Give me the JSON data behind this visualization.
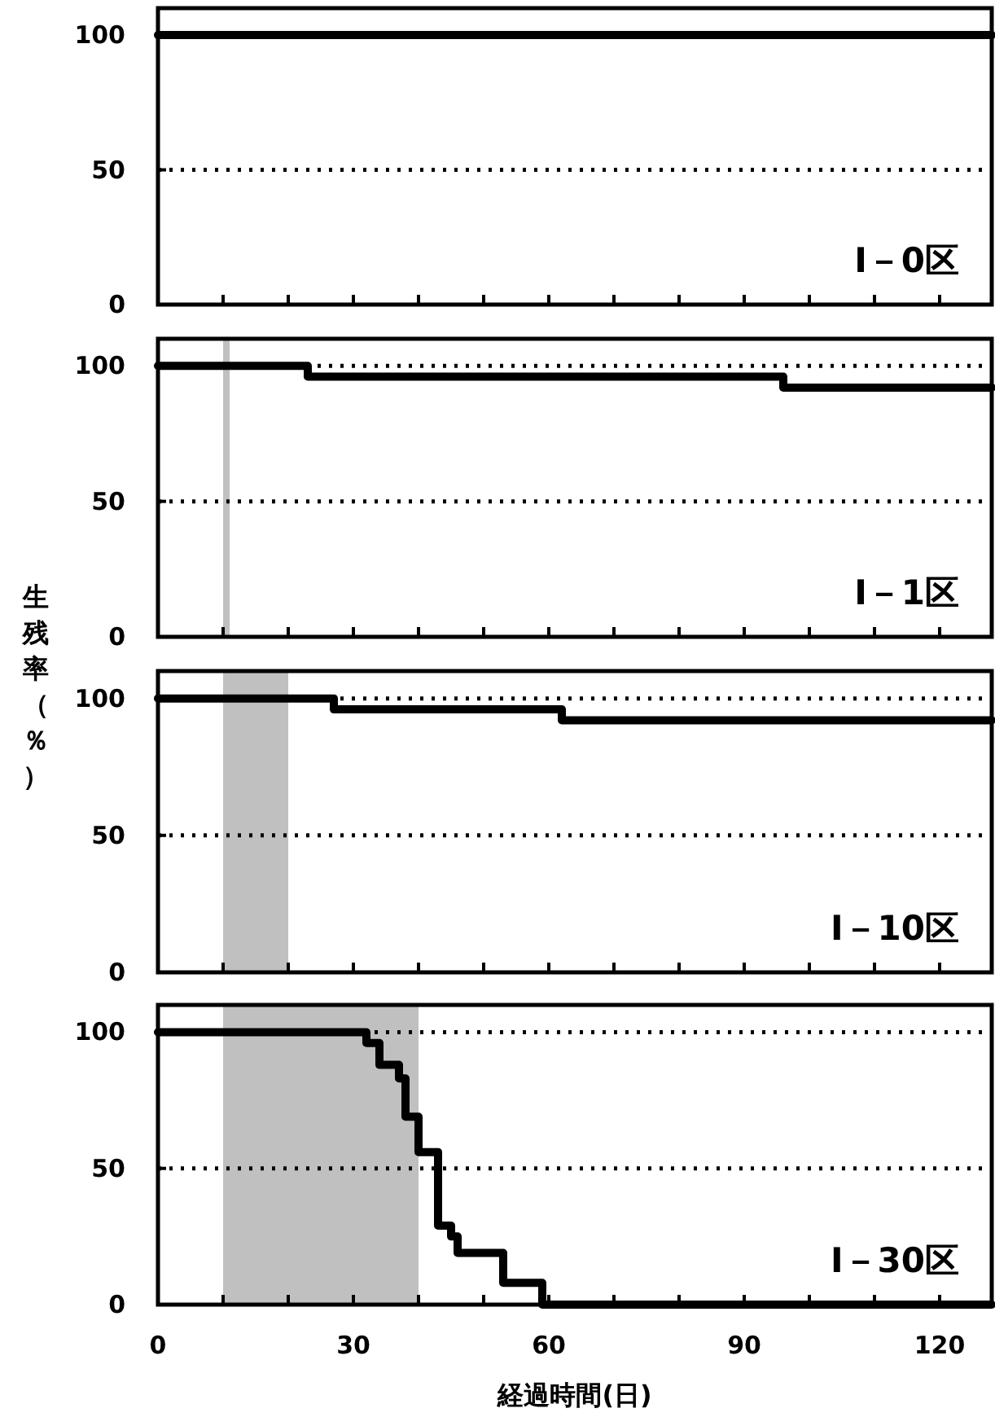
{
  "chart_data": [
    {
      "type": "step",
      "xlim": [
        0,
        128
      ],
      "ylim": [
        0,
        110
      ],
      "yticks": [
        0,
        50,
        100
      ],
      "xticks": [
        0,
        {
          "value": 10,
          "label": null
        },
        {
          "value": 20,
          "label": null
        },
        30,
        {
          "value": 40,
          "label": null
        },
        {
          "value": 50,
          "label": null
        },
        60,
        {
          "value": 70,
          "label": null
        },
        {
          "value": 80,
          "label": null
        },
        90,
        {
          "value": 100,
          "label": null
        },
        {
          "value": 110,
          "label": null
        },
        120
      ],
      "tick_labels": "y",
      "series": [
        {
          "color": "#000000",
          "x": [
            0,
            128
          ],
          "values": [
            100,
            100
          ]
        }
      ],
      "ref_lines": [
        {
          "axis": "y",
          "value": 50,
          "line_style": "dotted",
          "color": "#000000"
        }
      ],
      "annotations": [
        "Ⅰ－0区"
      ]
    },
    {
      "type": "step",
      "xlim": [
        0,
        128
      ],
      "ylim": [
        0,
        110
      ],
      "yticks": [
        0,
        50,
        100
      ],
      "xticks": [
        0,
        {
          "value": 10,
          "label": null
        },
        {
          "value": 20,
          "label": null
        },
        30,
        {
          "value": 40,
          "label": null
        },
        {
          "value": 50,
          "label": null
        },
        60,
        {
          "value": 70,
          "label": null
        },
        {
          "value": 80,
          "label": null
        },
        90,
        {
          "value": 100,
          "label": null
        },
        {
          "value": 110,
          "label": null
        },
        120
      ],
      "tick_labels": "y",
      "ylabel": "生残率（％）",
      "series": [
        {
          "color": "#000000",
          "x": [
            0,
            23,
            96,
            128
          ],
          "values": [
            100,
            96,
            92,
            92
          ]
        }
      ],
      "ref_lines": [
        {
          "axis": "y",
          "value": 50,
          "line_style": "dotted",
          "color": "#000000"
        },
        {
          "axis": "y",
          "value": 100,
          "line_style": "dotted",
          "color": "#000000"
        }
      ],
      "bands": [
        {
          "axis": "x",
          "from": 10,
          "to": 11,
          "color": "#c0c0c0"
        }
      ],
      "annotations": [
        "Ⅰ－1区"
      ]
    },
    {
      "type": "step",
      "xlim": [
        0,
        128
      ],
      "ylim": [
        0,
        110
      ],
      "yticks": [
        0,
        50,
        100
      ],
      "xticks": [
        0,
        {
          "value": 10,
          "label": null
        },
        {
          "value": 20,
          "label": null
        },
        30,
        {
          "value": 40,
          "label": null
        },
        {
          "value": 50,
          "label": null
        },
        60,
        {
          "value": 70,
          "label": null
        },
        {
          "value": 80,
          "label": null
        },
        90,
        {
          "value": 100,
          "label": null
        },
        {
          "value": 110,
          "label": null
        },
        120
      ],
      "tick_labels": "y",
      "series": [
        {
          "color": "#000000",
          "x": [
            0,
            27,
            62,
            128
          ],
          "values": [
            100,
            96,
            92,
            92
          ]
        }
      ],
      "ref_lines": [
        {
          "axis": "y",
          "value": 50,
          "line_style": "dotted",
          "color": "#000000"
        },
        {
          "axis": "y",
          "value": 100,
          "line_style": "dotted",
          "color": "#000000"
        }
      ],
      "bands": [
        {
          "axis": "x",
          "from": 10,
          "to": 20,
          "color": "#c0c0c0"
        }
      ],
      "annotations": [
        "Ⅰ－10区"
      ]
    },
    {
      "type": "step",
      "xlim": [
        0,
        128
      ],
      "ylim": [
        0,
        110
      ],
      "yticks": [
        0,
        50,
        100
      ],
      "xticks": [
        0,
        {
          "value": 10,
          "label": null
        },
        {
          "value": 20,
          "label": null
        },
        30,
        {
          "value": 40,
          "label": null
        },
        {
          "value": 50,
          "label": null
        },
        60,
        {
          "value": 70,
          "label": null
        },
        {
          "value": 80,
          "label": null
        },
        90,
        {
          "value": 100,
          "label": null
        },
        {
          "value": 110,
          "label": null
        },
        120
      ],
      "xlabel": "経過時間(日)",
      "series": [
        {
          "color": "#000000",
          "x": [
            0,
            32,
            34,
            37,
            38,
            40,
            43,
            45,
            46,
            53,
            59,
            128
          ],
          "values": [
            100,
            96,
            88,
            83,
            69,
            56,
            29,
            25,
            19,
            8,
            0,
            0
          ]
        }
      ],
      "ref_lines": [
        {
          "axis": "y",
          "value": 50,
          "line_style": "dotted",
          "color": "#000000"
        },
        {
          "axis": "y",
          "value": 100,
          "line_style": "dotted",
          "color": "#000000"
        }
      ],
      "bands": [
        {
          "axis": "x",
          "from": 10,
          "to": 40,
          "color": "#c0c0c0"
        }
      ],
      "annotations": [
        "Ⅰ－30区"
      ]
    }
  ]
}
